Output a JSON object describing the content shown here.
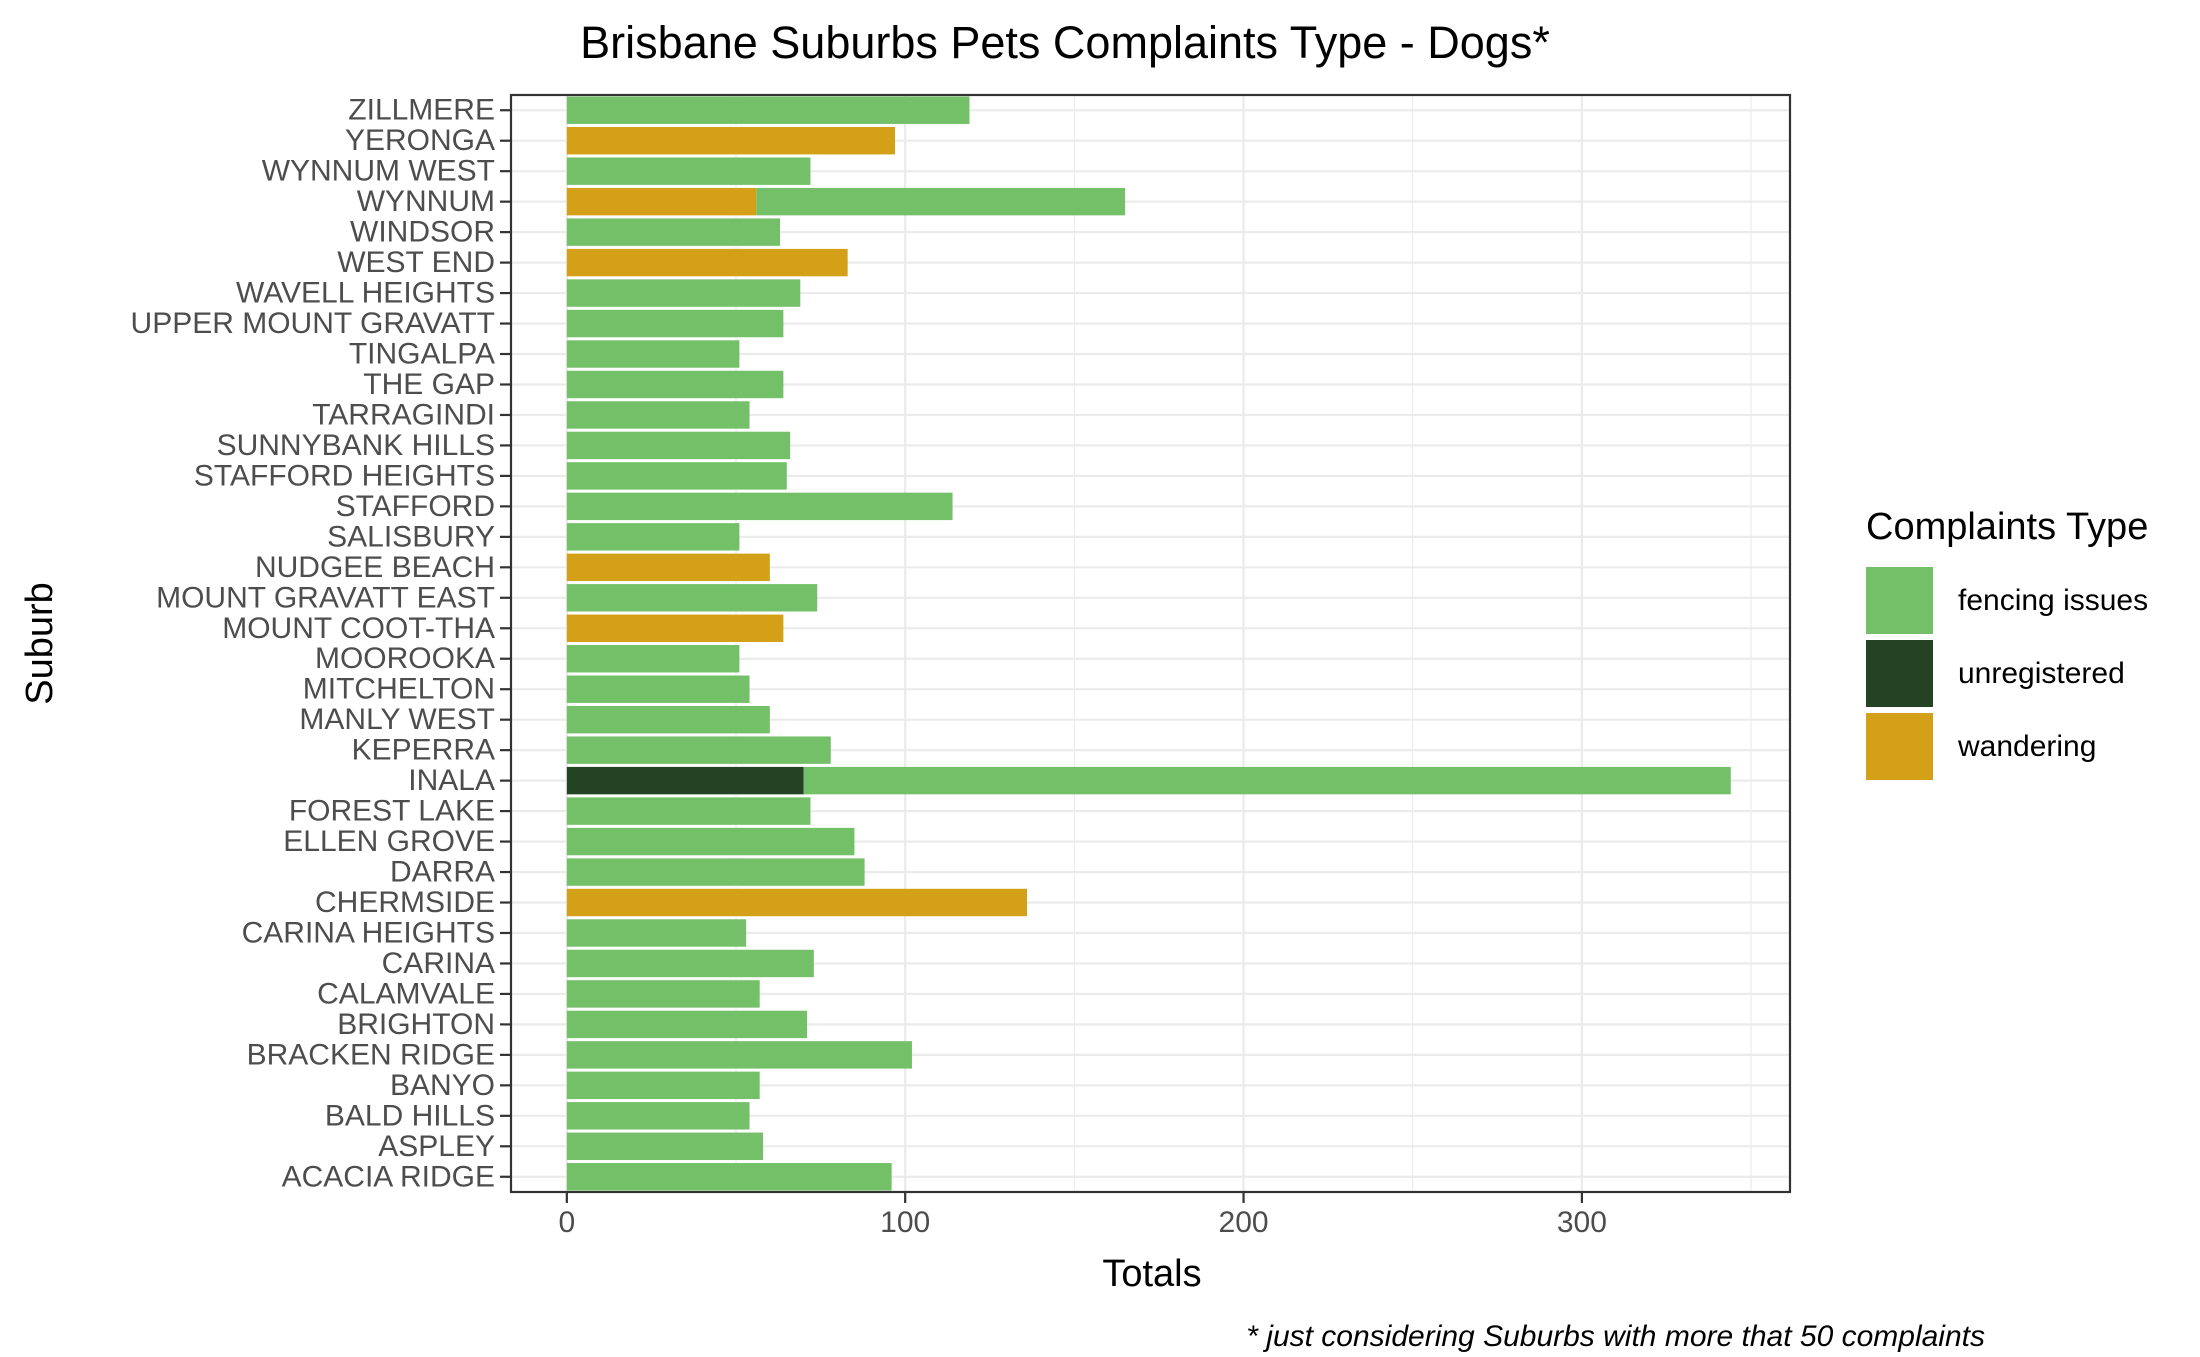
{
  "chart_data": {
    "type": "bar",
    "orientation": "horizontal",
    "stacked": true,
    "title": "Brisbane Suburbs Pets Complaints Type - Dogs*",
    "xlabel": "Totals",
    "ylabel": "Suburb",
    "caption": "* just considering Suburbs with more that 50 complaints",
    "xlim": [
      -16.5,
      361.5
    ],
    "xticks": [
      0,
      100,
      200,
      300
    ],
    "grid": true,
    "legend": {
      "title": "Complaints Type",
      "position": "right",
      "entries": [
        {
          "key": "fencing",
          "label": "fencing issues",
          "color": "#74c069"
        },
        {
          "key": "unregistered",
          "label": "unregistered",
          "color": "#244324"
        },
        {
          "key": "wandering",
          "label": "wandering",
          "color": "#d4a017"
        }
      ]
    },
    "categories": [
      "ZILLMERE",
      "YERONGA",
      "WYNNUM WEST",
      "WYNNUM",
      "WINDSOR",
      "WEST END",
      "WAVELL HEIGHTS",
      "UPPER MOUNT GRAVATT",
      "TINGALPA",
      "THE GAP",
      "TARRAGINDI",
      "SUNNYBANK HILLS",
      "STAFFORD HEIGHTS",
      "STAFFORD",
      "SALISBURY",
      "NUDGEE BEACH",
      "MOUNT GRAVATT EAST",
      "MOUNT COOT-THA",
      "MOOROOKA",
      "MITCHELTON",
      "MANLY WEST",
      "KEPERRA",
      "INALA",
      "FOREST LAKE",
      "ELLEN GROVE",
      "DARRA",
      "CHERMSIDE",
      "CARINA HEIGHTS",
      "CARINA",
      "CALAMVALE",
      "BRIGHTON",
      "BRACKEN RIDGE",
      "BANYO",
      "BALD HILLS",
      "ASPLEY",
      "ACACIA RIDGE"
    ],
    "series": [
      {
        "name": "unregistered",
        "key": "unregistered",
        "values": [
          0,
          0,
          0,
          0,
          0,
          0,
          0,
          0,
          0,
          0,
          0,
          0,
          0,
          0,
          0,
          0,
          0,
          0,
          0,
          0,
          0,
          0,
          70,
          0,
          0,
          0,
          0,
          0,
          0,
          0,
          0,
          0,
          0,
          0,
          0,
          0
        ]
      },
      {
        "name": "wandering",
        "key": "wandering",
        "values": [
          0,
          97,
          0,
          56,
          0,
          83,
          0,
          0,
          0,
          0,
          0,
          0,
          0,
          0,
          0,
          60,
          0,
          64,
          0,
          0,
          0,
          0,
          0,
          0,
          0,
          0,
          136,
          0,
          0,
          0,
          0,
          0,
          0,
          0,
          0,
          0
        ]
      },
      {
        "name": "fencing issues",
        "key": "fencing",
        "values": [
          119,
          0,
          72,
          109,
          63,
          0,
          69,
          64,
          51,
          64,
          54,
          66,
          65,
          114,
          51,
          0,
          74,
          0,
          51,
          54,
          60,
          78,
          274,
          72,
          85,
          88,
          0,
          53,
          73,
          57,
          71,
          102,
          57,
          54,
          58,
          96
        ]
      }
    ]
  }
}
